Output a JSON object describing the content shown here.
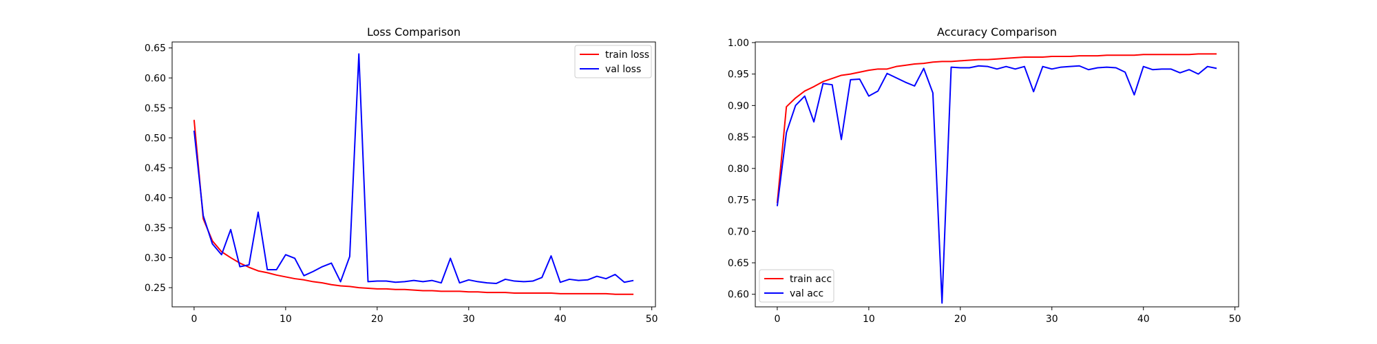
{
  "chart_data": [
    {
      "type": "line",
      "title": "Loss Comparison",
      "xlim": [
        -2.4,
        50.4
      ],
      "ylim": [
        0.218,
        0.66
      ],
      "xticks": [
        0,
        10,
        20,
        30,
        40,
        50
      ],
      "yticks": [
        0.25,
        0.3,
        0.35,
        0.4,
        0.45,
        0.5,
        0.55,
        0.6,
        0.65
      ],
      "legend_loc": "top-right",
      "grid": false,
      "x": [
        0,
        1,
        2,
        3,
        4,
        5,
        6,
        7,
        8,
        9,
        10,
        11,
        12,
        13,
        14,
        15,
        16,
        17,
        18,
        19,
        20,
        21,
        22,
        23,
        24,
        25,
        26,
        27,
        28,
        29,
        30,
        31,
        32,
        33,
        34,
        35,
        36,
        37,
        38,
        39,
        40,
        41,
        42,
        43,
        44,
        45,
        46,
        47,
        48
      ],
      "series": [
        {
          "name": "train loss",
          "color": "#ff0000",
          "values": [
            0.53,
            0.365,
            0.328,
            0.31,
            0.3,
            0.291,
            0.284,
            0.278,
            0.275,
            0.271,
            0.268,
            0.265,
            0.263,
            0.26,
            0.258,
            0.255,
            0.253,
            0.252,
            0.25,
            0.249,
            0.248,
            0.248,
            0.247,
            0.247,
            0.246,
            0.245,
            0.245,
            0.244,
            0.244,
            0.244,
            0.243,
            0.243,
            0.242,
            0.242,
            0.242,
            0.241,
            0.241,
            0.241,
            0.241,
            0.241,
            0.24,
            0.24,
            0.24,
            0.24,
            0.24,
            0.24,
            0.239,
            0.239,
            0.239
          ]
        },
        {
          "name": "val loss",
          "color": "#0000ff",
          "values": [
            0.512,
            0.37,
            0.323,
            0.305,
            0.347,
            0.285,
            0.288,
            0.376,
            0.28,
            0.28,
            0.305,
            0.299,
            0.27,
            0.277,
            0.285,
            0.291,
            0.26,
            0.302,
            0.64,
            0.26,
            0.261,
            0.261,
            0.259,
            0.26,
            0.262,
            0.26,
            0.262,
            0.258,
            0.299,
            0.258,
            0.263,
            0.26,
            0.258,
            0.257,
            0.264,
            0.261,
            0.26,
            0.261,
            0.267,
            0.303,
            0.259,
            0.264,
            0.262,
            0.263,
            0.269,
            0.265,
            0.272,
            0.259,
            0.262
          ]
        }
      ]
    },
    {
      "type": "line",
      "title": "Accuracy Comparison",
      "xlim": [
        -2.4,
        50.4
      ],
      "ylim": [
        0.58,
        1.001
      ],
      "xticks": [
        0,
        10,
        20,
        30,
        40,
        50
      ],
      "yticks": [
        0.6,
        0.65,
        0.7,
        0.75,
        0.8,
        0.85,
        0.9,
        0.95,
        1.0
      ],
      "legend_loc": "bottom-left",
      "grid": false,
      "x": [
        0,
        1,
        2,
        3,
        4,
        5,
        6,
        7,
        8,
        9,
        10,
        11,
        12,
        13,
        14,
        15,
        16,
        17,
        18,
        19,
        20,
        21,
        22,
        23,
        24,
        25,
        26,
        27,
        28,
        29,
        30,
        31,
        32,
        33,
        34,
        35,
        36,
        37,
        38,
        39,
        40,
        41,
        42,
        43,
        44,
        45,
        46,
        47,
        48
      ],
      "series": [
        {
          "name": "train acc",
          "color": "#ff0000",
          "values": [
            0.745,
            0.898,
            0.912,
            0.923,
            0.93,
            0.938,
            0.943,
            0.948,
            0.95,
            0.953,
            0.956,
            0.958,
            0.958,
            0.962,
            0.964,
            0.966,
            0.967,
            0.969,
            0.97,
            0.97,
            0.971,
            0.972,
            0.973,
            0.973,
            0.974,
            0.975,
            0.976,
            0.977,
            0.977,
            0.977,
            0.978,
            0.978,
            0.978,
            0.979,
            0.979,
            0.979,
            0.98,
            0.98,
            0.98,
            0.98,
            0.981,
            0.981,
            0.981,
            0.981,
            0.981,
            0.981,
            0.982,
            0.982,
            0.982
          ]
        },
        {
          "name": "val acc",
          "color": "#0000ff",
          "values": [
            0.74,
            0.857,
            0.9,
            0.915,
            0.874,
            0.935,
            0.933,
            0.846,
            0.941,
            0.942,
            0.915,
            0.923,
            0.951,
            0.944,
            0.937,
            0.931,
            0.959,
            0.92,
            0.586,
            0.961,
            0.96,
            0.96,
            0.963,
            0.962,
            0.958,
            0.962,
            0.958,
            0.962,
            0.922,
            0.962,
            0.958,
            0.961,
            0.962,
            0.963,
            0.957,
            0.96,
            0.961,
            0.96,
            0.953,
            0.917,
            0.962,
            0.957,
            0.958,
            0.958,
            0.952,
            0.957,
            0.95,
            0.962,
            0.959
          ]
        }
      ]
    }
  ]
}
